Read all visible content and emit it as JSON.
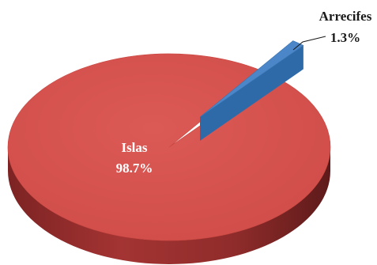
{
  "chart_data": {
    "type": "pie",
    "style": "3d-exploded",
    "slices": [
      {
        "name": "Islas",
        "value": 98.7,
        "label": "98.7%",
        "color": "#d9534f",
        "label_color": "#ffffff"
      },
      {
        "name": "Arrecifes",
        "value": 1.3,
        "label": "1.3%",
        "color": "#4a86c8",
        "label_color": "#1a1a1a"
      }
    ],
    "exploded": "Arrecifes",
    "legend": false,
    "title": ""
  }
}
